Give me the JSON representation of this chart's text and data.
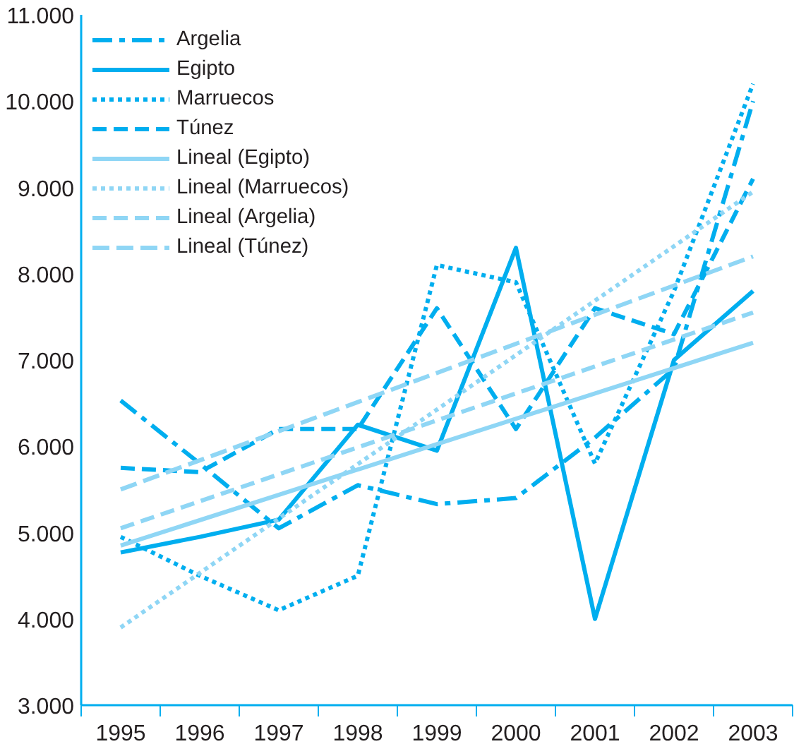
{
  "chart_data": {
    "type": "line",
    "categories": [
      "1995",
      "1996",
      "1997",
      "1998",
      "1999",
      "2000",
      "2001",
      "2002",
      "2003"
    ],
    "ylim": [
      3000,
      11000
    ],
    "yticks": [
      {
        "value": 3000,
        "label": "3.000"
      },
      {
        "value": 4000,
        "label": "4.000"
      },
      {
        "value": 5000,
        "label": "5.000"
      },
      {
        "value": 6000,
        "label": "6.000"
      },
      {
        "value": 7000,
        "label": "7.000"
      },
      {
        "value": 8000,
        "label": "8.000"
      },
      {
        "value": 9000,
        "label": "9.000"
      },
      {
        "value": 10000,
        "label": "10.000"
      },
      {
        "value": 11000,
        "label": "11.000"
      }
    ],
    "grid": false,
    "legend": "top left",
    "marker": "none",
    "series": [
      {
        "name": "Argelia",
        "color": "#00aeef",
        "line_style": "dashdot",
        "values": [
          6530,
          5800,
          5050,
          5550,
          5330,
          5400,
          6100,
          6900,
          10000
        ]
      },
      {
        "name": "Egipto",
        "color": "#00aeef",
        "line_style": "solid",
        "values": [
          4770,
          4950,
          5150,
          6250,
          5950,
          8300,
          4000,
          7000,
          7800
        ]
      },
      {
        "name": "Marruecos",
        "color": "#00aeef",
        "line_style": "dotted",
        "values": [
          4950,
          4500,
          4100,
          4500,
          8100,
          7900,
          5800,
          7800,
          10200
        ]
      },
      {
        "name": "Túnez",
        "color": "#00aeef",
        "line_style": "dashed",
        "values": [
          5750,
          5700,
          6200,
          6200,
          7600,
          6200,
          7600,
          7300,
          9100
        ]
      },
      {
        "name": "Lineal (Egipto)",
        "color": "#8fd6f5",
        "line_style": "solid",
        "values": [
          4850,
          null,
          null,
          null,
          null,
          null,
          null,
          null,
          7200
        ]
      },
      {
        "name": "Lineal (Marruecos)",
        "color": "#8fd6f5",
        "line_style": "dotted",
        "values": [
          3900,
          null,
          null,
          null,
          null,
          null,
          null,
          null,
          8950
        ]
      },
      {
        "name": "Lineal (Argelia)",
        "color": "#8fd6f5",
        "line_style": "dashed",
        "values": [
          5050,
          null,
          null,
          null,
          null,
          null,
          null,
          null,
          7550
        ]
      },
      {
        "name": "Lineal (Túnez)",
        "color": "#8fd6f5",
        "line_style": "longdash",
        "values": [
          5500,
          null,
          null,
          null,
          null,
          null,
          null,
          null,
          8200
        ]
      }
    ]
  }
}
